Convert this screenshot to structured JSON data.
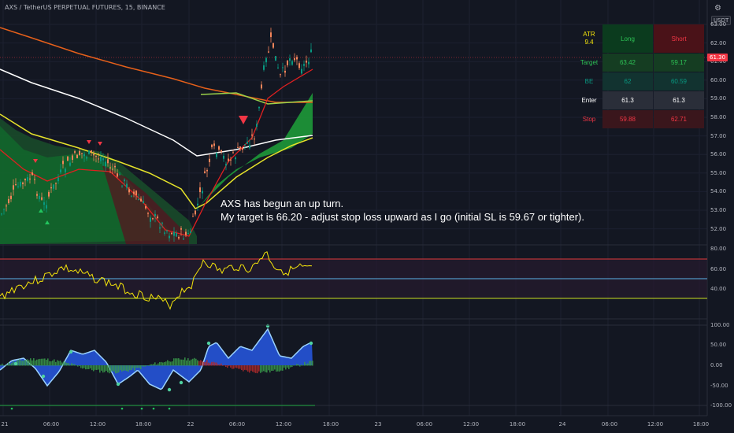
{
  "header": {
    "symbol": "AXS / TetherUS PERPETUAL FUTURES, 15, BINANCE",
    "currency": "USDT"
  },
  "annotation": {
    "line1": "AXS has begun an up turn.",
    "line2": "My target is 66.20 - adjust stop  loss upward as I go (initial SL is 59.67 or tighter)."
  },
  "last_price": "61.30",
  "y_axis_main": [
    "63.00",
    "62.00",
    "61.00",
    "60.00",
    "59.00",
    "58.00",
    "57.00",
    "56.00",
    "55.00",
    "54.00",
    "53.00",
    "52.00"
  ],
  "y_axis_rsi": [
    "80.00",
    "60.00",
    "40.00"
  ],
  "y_axis_osc": [
    "100.00",
    "50.00",
    "0.00",
    "-50.00",
    "-100.00"
  ],
  "x_axis": [
    "21",
    "06:00",
    "12:00",
    "18:00",
    "22",
    "06:00",
    "12:00",
    "18:00",
    "23",
    "06:00",
    "12:00",
    "18:00",
    "24",
    "06:00",
    "12:00",
    "18:00"
  ],
  "table": {
    "atr_label": "ATR",
    "atr_value": "9.4",
    "long_header": "Long",
    "short_header": "Short",
    "rows": [
      {
        "label": "Target",
        "long": "63.42",
        "short": "59.17"
      },
      {
        "label": "BE",
        "long": "62",
        "short": "60.59"
      },
      {
        "label": "Enter",
        "long": "61.3",
        "short": "61.3"
      },
      {
        "label": "Stop",
        "long": "59.88",
        "short": "62.71"
      }
    ]
  },
  "colors": {
    "bg": "#131722",
    "up": "#089981",
    "down": "#f23645",
    "rsi": "#f5e50a",
    "osc_fill": "#2962ff"
  },
  "icons": {
    "settings": "gear-icon"
  }
}
